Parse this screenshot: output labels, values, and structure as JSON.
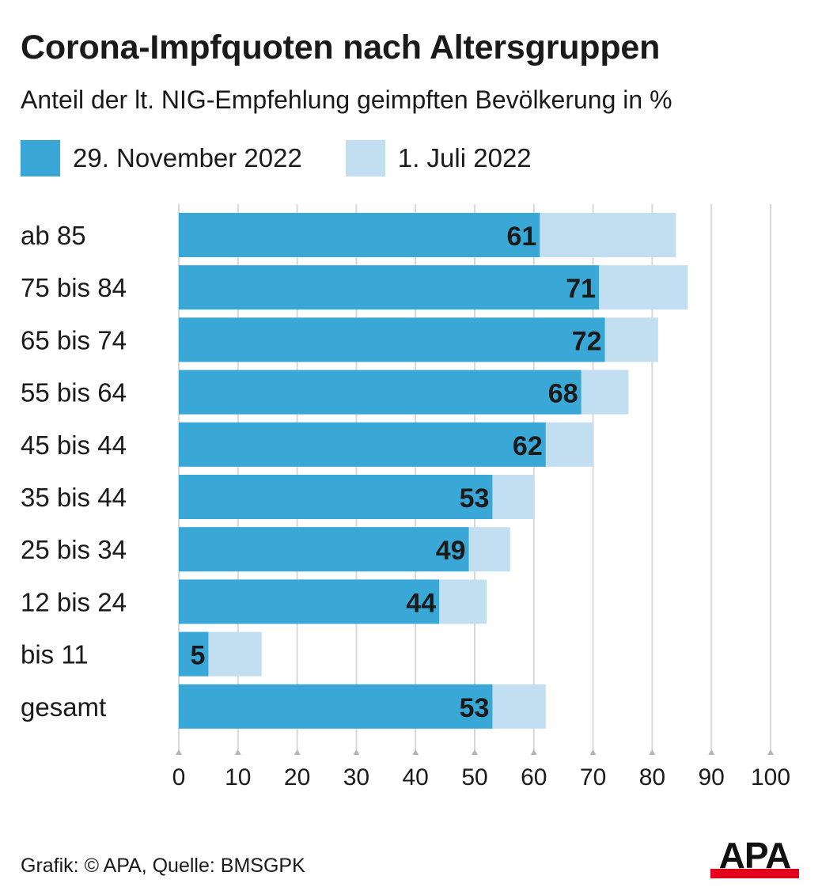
{
  "chart_data": {
    "type": "bar",
    "orientation": "horizontal",
    "title": "Corona-Impfquoten nach Altersgruppen",
    "subtitle": "Anteil der lt. NIG-Empfehlung geimpften Bevölkerung in %",
    "categories": [
      "ab 85",
      "75 bis 84",
      "65 bis 74",
      "55 bis 64",
      "45 bis 44",
      "35 bis 44",
      "25 bis 34",
      "12 bis 24",
      "bis 11",
      "gesamt"
    ],
    "series": [
      {
        "name": "29. November 2022",
        "color": "#3aa8d6",
        "values": [
          61,
          71,
          72,
          68,
          62,
          53,
          49,
          44,
          5,
          53
        ]
      },
      {
        "name": "1. Juli 2022",
        "color": "#c1dff0",
        "values": [
          84,
          86,
          81,
          76,
          70,
          60,
          56,
          52,
          14,
          62
        ]
      }
    ],
    "data_labels_series": "29. November 2022",
    "xlim": [
      0,
      100
    ],
    "xticks": [
      0,
      10,
      20,
      30,
      40,
      50,
      60,
      70,
      80,
      90,
      100
    ],
    "grid": true,
    "legend": "top-left"
  },
  "footer": {
    "source": "Grafik: © APA, Quelle: BMSGPK"
  },
  "logo": {
    "text": "APA",
    "color": "#111111",
    "bar_color": "#e2001a"
  }
}
